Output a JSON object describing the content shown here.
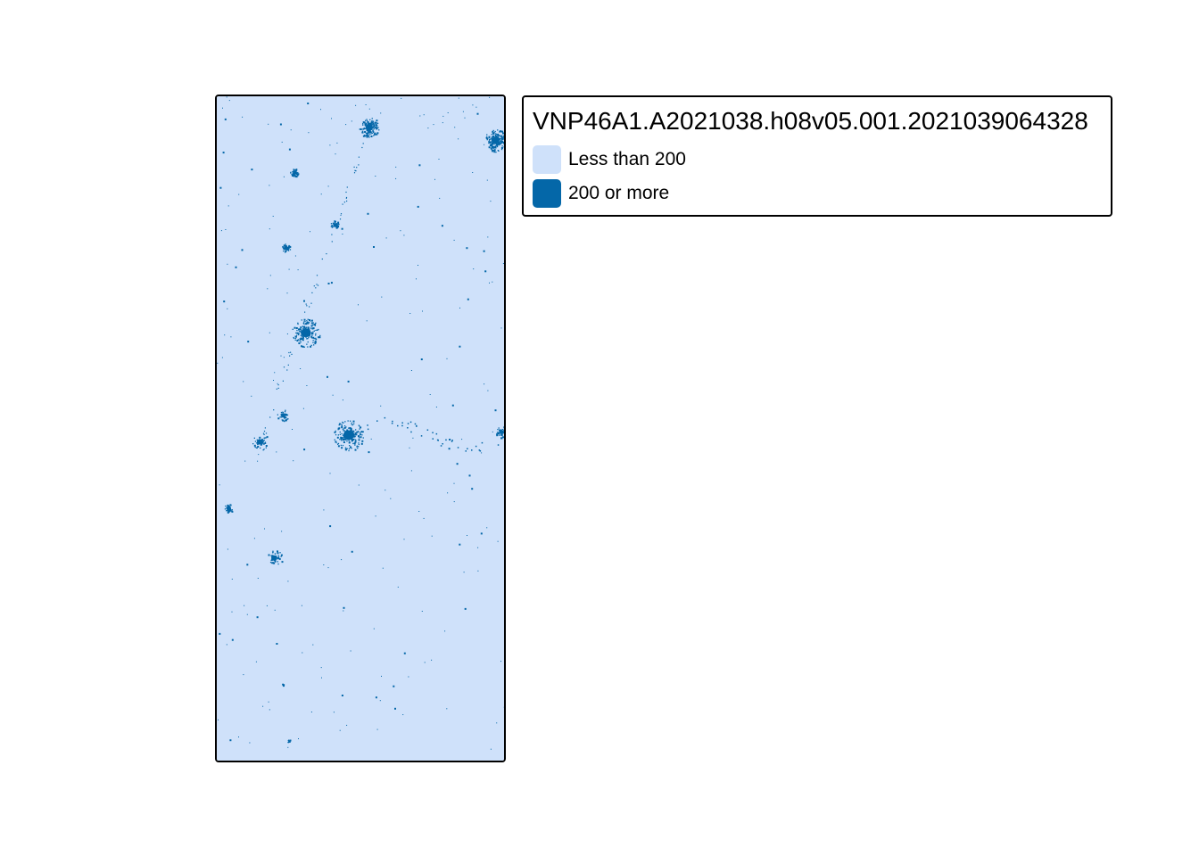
{
  "map": {
    "background_color": "#cfe1fa",
    "highlight_color": "#0467a8",
    "clusters": [
      {
        "name": "cluster-top-center",
        "u": 0.53,
        "v": 0.047,
        "r": 0.035,
        "density": "high"
      },
      {
        "name": "cluster-top-right",
        "u": 0.97,
        "v": 0.066,
        "r": 0.04,
        "density": "high"
      },
      {
        "name": "cluster-small-a",
        "u": 0.27,
        "v": 0.114,
        "r": 0.015,
        "density": "medium"
      },
      {
        "name": "cluster-small-b",
        "u": 0.41,
        "v": 0.193,
        "r": 0.015,
        "density": "medium"
      },
      {
        "name": "cluster-small-c",
        "u": 0.24,
        "v": 0.228,
        "r": 0.015,
        "density": "medium"
      },
      {
        "name": "cluster-mid-left",
        "u": 0.31,
        "v": 0.356,
        "r": 0.05,
        "density": "high"
      },
      {
        "name": "cluster-center",
        "u": 0.46,
        "v": 0.51,
        "r": 0.055,
        "density": "high"
      },
      {
        "name": "cluster-left-a",
        "u": 0.15,
        "v": 0.52,
        "r": 0.03,
        "density": "medium"
      },
      {
        "name": "cluster-left-b",
        "u": 0.23,
        "v": 0.48,
        "r": 0.02,
        "density": "medium"
      },
      {
        "name": "cluster-right-edge",
        "u": 0.99,
        "v": 0.505,
        "r": 0.02,
        "density": "medium"
      },
      {
        "name": "cluster-lower-left",
        "u": 0.04,
        "v": 0.62,
        "r": 0.015,
        "density": "medium"
      },
      {
        "name": "cluster-lower-mid",
        "u": 0.2,
        "v": 0.695,
        "r": 0.03,
        "density": "medium"
      },
      {
        "name": "cluster-bottom-small",
        "u": 0.23,
        "v": 0.885,
        "r": 0.008,
        "density": "low"
      },
      {
        "name": "cluster-bottom-left",
        "u": 0.25,
        "v": 0.97,
        "r": 0.008,
        "density": "low"
      }
    ]
  },
  "legend": {
    "title": "VNP46A1.A2021038.h08v05.001.2021039064328",
    "items": [
      {
        "label": "Less than 200",
        "color": "#cfe1fa"
      },
      {
        "label": "200 or more",
        "color": "#0467a8"
      }
    ]
  }
}
